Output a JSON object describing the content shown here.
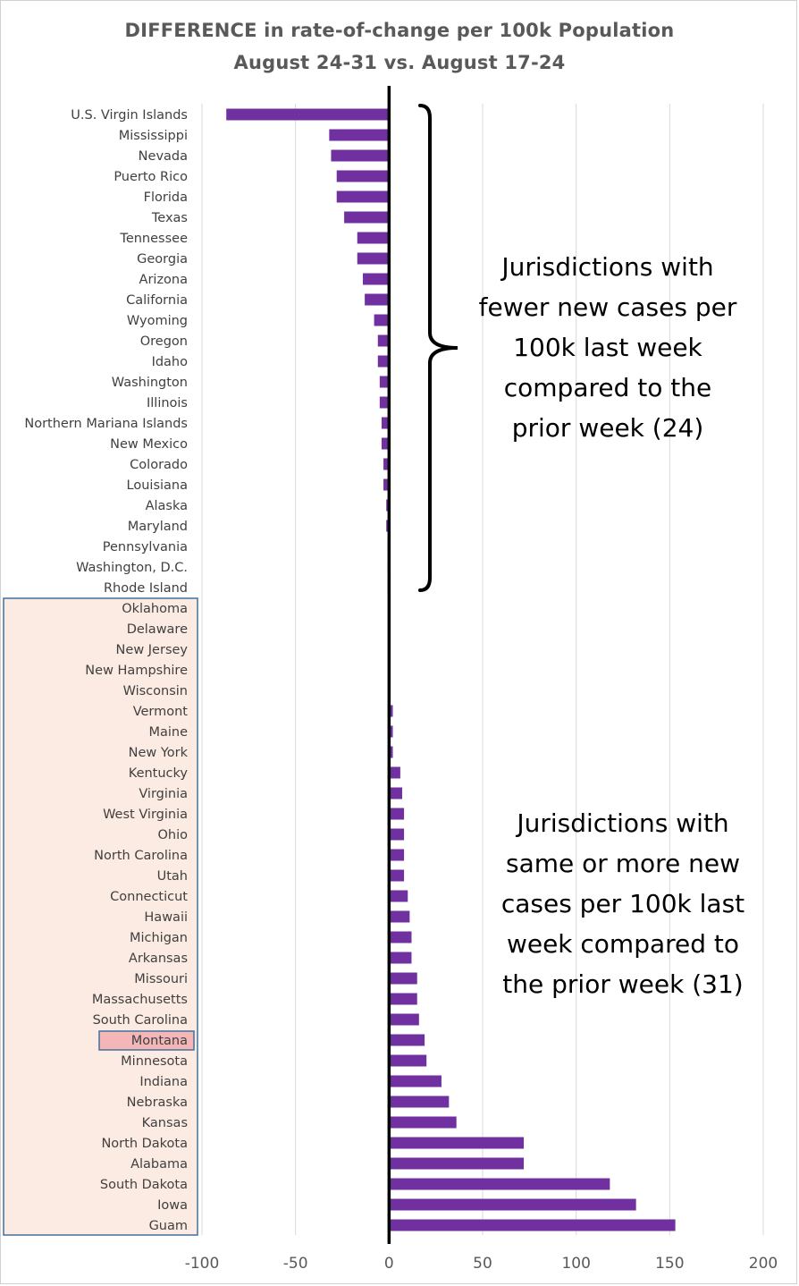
{
  "chart_data": {
    "type": "bar",
    "orientation": "horizontal",
    "title": "DIFFERENCE in rate-of-change per 100k Population",
    "subtitle": "August 24-31 vs. August 17-24",
    "xlim": [
      -100,
      200
    ],
    "xticks": [
      -100,
      -50,
      0,
      50,
      100,
      150,
      200
    ],
    "grid": true,
    "bar_color": "#7030a0",
    "categories": [
      "U.S. Virgin Islands",
      "Mississippi",
      "Nevada",
      "Puerto Rico",
      "Florida",
      "Texas",
      "Tennessee",
      "Georgia",
      "Arizona",
      "California",
      "Wyoming",
      "Oregon",
      "Idaho",
      "Washington",
      "Illinois",
      "Northern Mariana Islands",
      "New Mexico",
      "Colorado",
      "Louisiana",
      "Alaska",
      "Maryland",
      "Pennsylvania",
      "Washington, D.C.",
      "Rhode Island",
      "Oklahoma",
      "Delaware",
      "New Jersey",
      "New Hampshire",
      "Wisconsin",
      "Vermont",
      "Maine",
      "New York",
      "Kentucky",
      "Virginia",
      "West Virginia",
      "Ohio",
      "North Carolina",
      "Utah",
      "Connecticut",
      "Hawaii",
      "Michigan",
      "Arkansas",
      "Missouri",
      "Massachusetts",
      "South Carolina",
      "Montana",
      "Minnesota",
      "Indiana",
      "Nebraska",
      "Kansas",
      "North Dakota",
      "Alabama",
      "South Dakota",
      "Iowa",
      "Guam"
    ],
    "values": [
      -87,
      -32,
      -31,
      -28,
      -28,
      -24,
      -17,
      -17,
      -14,
      -13,
      -8,
      -6,
      -6,
      -5,
      -5,
      -4,
      -4,
      -3,
      -3,
      -1.5,
      -1.5,
      -0.8,
      -0.8,
      -0.5,
      0,
      0,
      0,
      0,
      0,
      2,
      2,
      2,
      6,
      7,
      8,
      8,
      8,
      8,
      10,
      11,
      12,
      12,
      15,
      15,
      16,
      19,
      20,
      28,
      32,
      36,
      72,
      72,
      118,
      132,
      153
    ],
    "highlighted_category": "Montana",
    "annotations": [
      {
        "text_lines": [
          "Jurisdictions with",
          "fewer new cases per",
          "100k last week",
          "compared to the",
          "prior week (24)"
        ]
      },
      {
        "text_lines": [
          "Jurisdictions with",
          "same or more new",
          "cases per 100k last",
          "week compared to",
          "the prior week (31)"
        ]
      }
    ]
  }
}
